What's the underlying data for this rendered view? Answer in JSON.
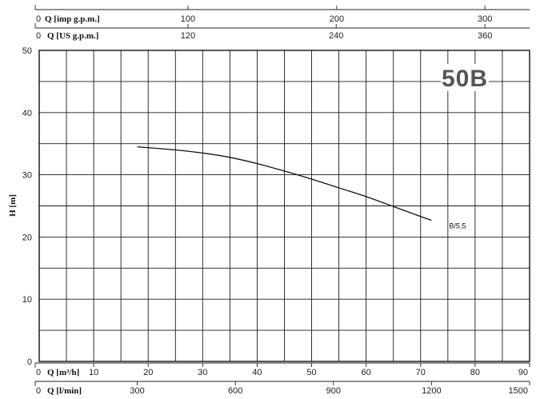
{
  "chart_data": {
    "type": "line",
    "badge": "50B",
    "ylabel": "H [m]",
    "ylim": [
      0,
      50
    ],
    "yticks": [
      0,
      10,
      20,
      30,
      40,
      50
    ],
    "x_axes": [
      {
        "id": "imp",
        "label": "Q [imp g.p.m.]",
        "zero": "0",
        "ticks": [
          {
            "label": "100",
            "flow_m3h": 27.3
          },
          {
            "label": "200",
            "flow_m3h": 54.6
          },
          {
            "label": "300",
            "flow_m3h": 81.8
          }
        ]
      },
      {
        "id": "us",
        "label": "Q [US g.p.m.]",
        "zero": "0",
        "ticks": [
          {
            "label": "120",
            "flow_m3h": 27.3
          },
          {
            "label": "240",
            "flow_m3h": 54.5
          },
          {
            "label": "360",
            "flow_m3h": 81.8
          }
        ]
      },
      {
        "id": "m3h",
        "label": "Q [m³/h]",
        "zero": "0",
        "ticks": [
          {
            "label": "10",
            "flow_m3h": 10
          },
          {
            "label": "20",
            "flow_m3h": 20
          },
          {
            "label": "30",
            "flow_m3h": 30
          },
          {
            "label": "40",
            "flow_m3h": 40
          },
          {
            "label": "50",
            "flow_m3h": 50
          },
          {
            "label": "60",
            "flow_m3h": 60
          },
          {
            "label": "70",
            "flow_m3h": 70
          },
          {
            "label": "80",
            "flow_m3h": 80
          },
          {
            "label": "90",
            "flow_m3h": 90
          }
        ]
      },
      {
        "id": "lmin",
        "label": "Q [l/min]",
        "zero": "0",
        "ticks": [
          {
            "label": "300",
            "flow_m3h": 18
          },
          {
            "label": "600",
            "flow_m3h": 36
          },
          {
            "label": "900",
            "flow_m3h": 54
          },
          {
            "label": "1200",
            "flow_m3h": 72
          },
          {
            "label": "1500",
            "flow_m3h": 90
          }
        ]
      }
    ],
    "xlim_m3h": [
      0,
      90
    ],
    "series": [
      {
        "name": "B/5,5",
        "x": [
          18,
          25,
          30,
          35,
          40,
          45,
          50,
          55,
          60,
          65,
          70,
          72
        ],
        "y": [
          34.5,
          34.0,
          33.5,
          32.8,
          31.8,
          30.6,
          29.3,
          27.9,
          26.5,
          24.9,
          23.3,
          22.7
        ]
      }
    ]
  }
}
